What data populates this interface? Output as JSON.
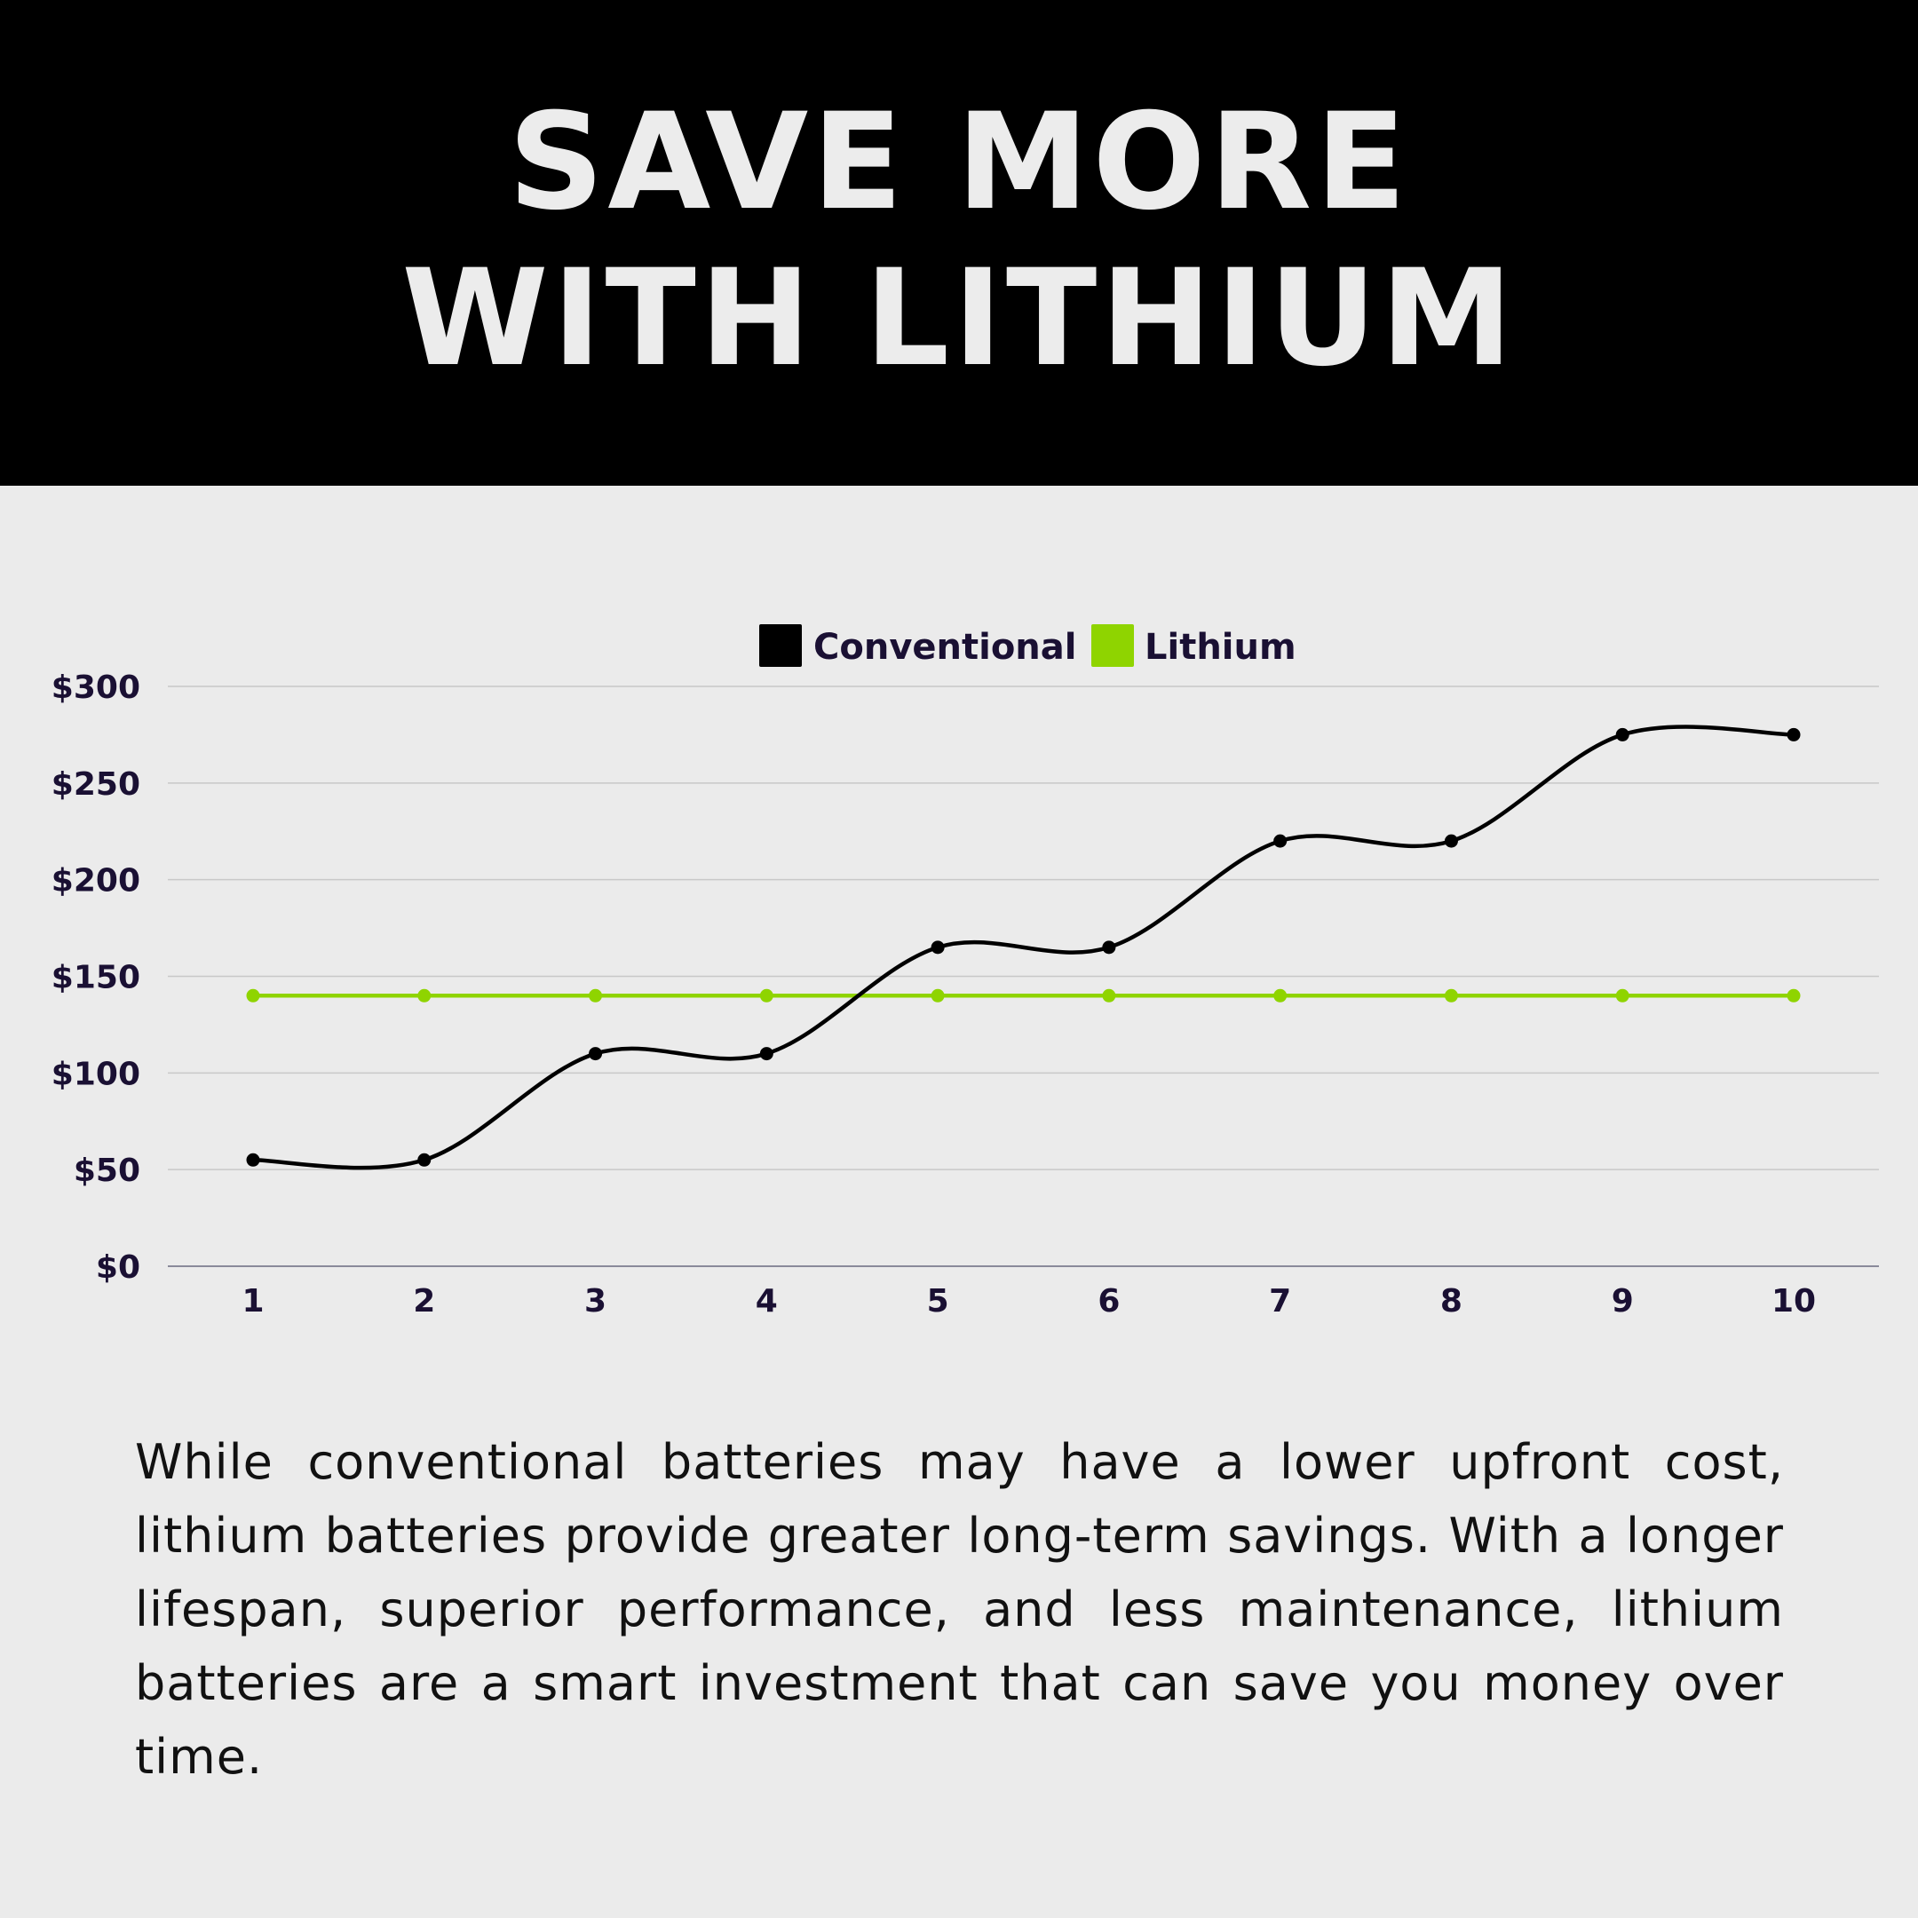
{
  "title": {
    "line1": "SAVE MORE",
    "line2": "WITH LITHIUM"
  },
  "chart_data": {
    "type": "line",
    "categories": [
      "1",
      "2",
      "3",
      "4",
      "5",
      "6",
      "7",
      "8",
      "9",
      "10"
    ],
    "series": [
      {
        "name": "Conventional",
        "color": "#000000",
        "values": [
          55,
          55,
          110,
          110,
          165,
          165,
          220,
          220,
          275,
          275
        ]
      },
      {
        "name": "Lithium",
        "color": "#8fd400",
        "values": [
          140,
          140,
          140,
          140,
          140,
          140,
          140,
          140,
          140,
          140
        ]
      }
    ],
    "ylim": [
      0,
      300
    ],
    "yticks": [
      0,
      50,
      100,
      150,
      200,
      250,
      300
    ],
    "ytick_labels": [
      "$0",
      "$50",
      "$100",
      "$150",
      "$200",
      "$250",
      "$300"
    ],
    "grid": true,
    "legend_position": "top-center",
    "smooth": true
  },
  "paragraph": "While conventional batteries may have a lower upfront cost, lithium batteries provide greater long-term savings. With a longer lifespan, superior performance, and less maintenance, lithium batteries are a smart investment that can save you money over time."
}
